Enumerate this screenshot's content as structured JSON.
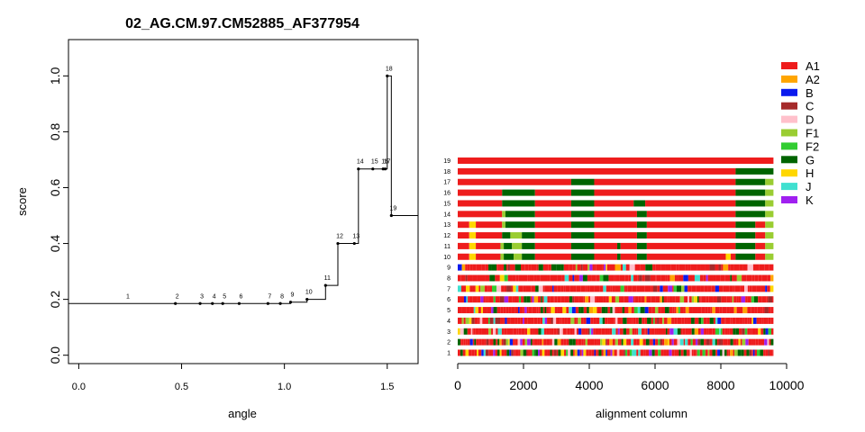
{
  "chart_data": [
    {
      "type": "line",
      "title": "02_AG.CM.97.CM52885_AF377954",
      "xlabel": "angle",
      "ylabel": "score",
      "xlim": [
        -0.05,
        1.65
      ],
      "ylim": [
        -0.03,
        1.13
      ],
      "xticks": [
        "0.0",
        "0.5",
        "1.0",
        "1.5"
      ],
      "xtick_values": [
        0,
        0.5,
        1.0,
        1.5
      ],
      "yticks": [
        "0.0",
        "0.2",
        "0.4",
        "0.6",
        "0.8",
        "1.0"
      ],
      "ytick_values": [
        0,
        0.2,
        0.4,
        0.6,
        0.8,
        1.0
      ],
      "step_points": [
        {
          "label": "1",
          "x": 0.23,
          "y": 0.185
        },
        {
          "label": "2",
          "x": 0.47,
          "y": 0.185
        },
        {
          "label": "3",
          "x": 0.59,
          "y": 0.185
        },
        {
          "label": "4",
          "x": 0.65,
          "y": 0.185
        },
        {
          "label": "5",
          "x": 0.7,
          "y": 0.185
        },
        {
          "label": "6",
          "x": 0.78,
          "y": 0.185
        },
        {
          "label": "7",
          "x": 0.92,
          "y": 0.185
        },
        {
          "label": "8",
          "x": 0.98,
          "y": 0.185
        },
        {
          "label": "9",
          "x": 1.03,
          "y": 0.19
        },
        {
          "label": "10",
          "x": 1.11,
          "y": 0.2
        },
        {
          "label": "11",
          "x": 1.2,
          "y": 0.25
        },
        {
          "label": "12",
          "x": 1.26,
          "y": 0.4
        },
        {
          "label": "13",
          "x": 1.34,
          "y": 0.4
        },
        {
          "label": "14",
          "x": 1.36,
          "y": 0.667
        },
        {
          "label": "15",
          "x": 1.43,
          "y": 0.667
        },
        {
          "label": "16",
          "x": 1.48,
          "y": 0.667
        },
        {
          "label": "17",
          "x": 1.49,
          "y": 0.667
        },
        {
          "label": "18",
          "x": 1.5,
          "y": 1.0
        },
        {
          "label": "19",
          "x": 1.52,
          "y": 0.5
        }
      ],
      "grid": false
    },
    {
      "type": "bar",
      "xlabel": "alignment column",
      "xlim": [
        0,
        10000
      ],
      "xticks": [
        "0",
        "2000",
        "4000",
        "6000",
        "8000",
        "10000"
      ],
      "xtick_values": [
        0,
        2000,
        4000,
        6000,
        8000,
        10000
      ],
      "rows": [
        "1",
        "2",
        "3",
        "4",
        "5",
        "6",
        "7",
        "8",
        "9",
        "10",
        "11",
        "12",
        "13",
        "14",
        "15",
        "16",
        "17",
        "18",
        "19"
      ],
      "row_segments": {
        "19": [
          {
            "start": 0,
            "end": 9600,
            "subtype": "A1"
          }
        ],
        "18": [
          {
            "start": 0,
            "end": 8450,
            "subtype": "A1"
          },
          {
            "start": 8450,
            "end": 9600,
            "subtype": "G"
          }
        ],
        "17": [
          {
            "start": 0,
            "end": 3450,
            "subtype": "A1"
          },
          {
            "start": 3450,
            "end": 4150,
            "subtype": "G"
          },
          {
            "start": 4150,
            "end": 8450,
            "subtype": "A1"
          },
          {
            "start": 8450,
            "end": 9350,
            "subtype": "G"
          },
          {
            "start": 9350,
            "end": 9600,
            "subtype": "F1"
          }
        ],
        "16": [
          {
            "start": 0,
            "end": 1350,
            "subtype": "A1"
          },
          {
            "start": 1350,
            "end": 2350,
            "subtype": "G"
          },
          {
            "start": 2350,
            "end": 3450,
            "subtype": "A1"
          },
          {
            "start": 3450,
            "end": 4150,
            "subtype": "G"
          },
          {
            "start": 4150,
            "end": 8450,
            "subtype": "A1"
          },
          {
            "start": 8450,
            "end": 9350,
            "subtype": "G"
          },
          {
            "start": 9350,
            "end": 9600,
            "subtype": "F1"
          }
        ],
        "15": [
          {
            "start": 0,
            "end": 1350,
            "subtype": "A1"
          },
          {
            "start": 1350,
            "end": 2350,
            "subtype": "G"
          },
          {
            "start": 2350,
            "end": 3450,
            "subtype": "A1"
          },
          {
            "start": 3450,
            "end": 4150,
            "subtype": "G"
          },
          {
            "start": 4150,
            "end": 5350,
            "subtype": "A1"
          },
          {
            "start": 5350,
            "end": 5700,
            "subtype": "G"
          },
          {
            "start": 5700,
            "end": 8450,
            "subtype": "A1"
          },
          {
            "start": 8450,
            "end": 9350,
            "subtype": "G"
          },
          {
            "start": 9350,
            "end": 9600,
            "subtype": "F1"
          }
        ],
        "14": [
          {
            "start": 0,
            "end": 1350,
            "subtype": "A1"
          },
          {
            "start": 1350,
            "end": 1450,
            "subtype": "F1"
          },
          {
            "start": 1450,
            "end": 2350,
            "subtype": "G"
          },
          {
            "start": 2350,
            "end": 3450,
            "subtype": "A1"
          },
          {
            "start": 3450,
            "end": 4150,
            "subtype": "G"
          },
          {
            "start": 4150,
            "end": 5450,
            "subtype": "A1"
          },
          {
            "start": 5450,
            "end": 5750,
            "subtype": "G"
          },
          {
            "start": 5750,
            "end": 8450,
            "subtype": "A1"
          },
          {
            "start": 8450,
            "end": 9350,
            "subtype": "G"
          },
          {
            "start": 9350,
            "end": 9600,
            "subtype": "F1"
          }
        ],
        "13": [
          {
            "start": 0,
            "end": 350,
            "subtype": "A1"
          },
          {
            "start": 350,
            "end": 550,
            "subtype": "H"
          },
          {
            "start": 550,
            "end": 1350,
            "subtype": "A1"
          },
          {
            "start": 1350,
            "end": 1450,
            "subtype": "F1"
          },
          {
            "start": 1450,
            "end": 2350,
            "subtype": "G"
          },
          {
            "start": 2350,
            "end": 3450,
            "subtype": "A1"
          },
          {
            "start": 3450,
            "end": 4150,
            "subtype": "G"
          },
          {
            "start": 4150,
            "end": 5450,
            "subtype": "A1"
          },
          {
            "start": 5450,
            "end": 5750,
            "subtype": "G"
          },
          {
            "start": 5750,
            "end": 8450,
            "subtype": "A1"
          },
          {
            "start": 8450,
            "end": 9050,
            "subtype": "G"
          },
          {
            "start": 9050,
            "end": 9350,
            "subtype": "A1"
          },
          {
            "start": 9350,
            "end": 9600,
            "subtype": "F1"
          }
        ],
        "12": [
          {
            "start": 0,
            "end": 350,
            "subtype": "A1"
          },
          {
            "start": 350,
            "end": 550,
            "subtype": "H"
          },
          {
            "start": 550,
            "end": 1350,
            "subtype": "A1"
          },
          {
            "start": 1350,
            "end": 1600,
            "subtype": "G"
          },
          {
            "start": 1600,
            "end": 1950,
            "subtype": "F1"
          },
          {
            "start": 1950,
            "end": 2350,
            "subtype": "G"
          },
          {
            "start": 2350,
            "end": 3450,
            "subtype": "A1"
          },
          {
            "start": 3450,
            "end": 4150,
            "subtype": "G"
          },
          {
            "start": 4150,
            "end": 5450,
            "subtype": "A1"
          },
          {
            "start": 5450,
            "end": 5750,
            "subtype": "G"
          },
          {
            "start": 5750,
            "end": 8450,
            "subtype": "A1"
          },
          {
            "start": 8450,
            "end": 9050,
            "subtype": "G"
          },
          {
            "start": 9050,
            "end": 9350,
            "subtype": "A1"
          },
          {
            "start": 9350,
            "end": 9600,
            "subtype": "F1"
          }
        ],
        "11": [
          {
            "start": 0,
            "end": 350,
            "subtype": "A1"
          },
          {
            "start": 350,
            "end": 550,
            "subtype": "H"
          },
          {
            "start": 550,
            "end": 1300,
            "subtype": "A1"
          },
          {
            "start": 1300,
            "end": 1400,
            "subtype": "F1"
          },
          {
            "start": 1400,
            "end": 1650,
            "subtype": "G"
          },
          {
            "start": 1650,
            "end": 1950,
            "subtype": "F1"
          },
          {
            "start": 1950,
            "end": 2350,
            "subtype": "G"
          },
          {
            "start": 2350,
            "end": 3450,
            "subtype": "A1"
          },
          {
            "start": 3450,
            "end": 4150,
            "subtype": "G"
          },
          {
            "start": 4150,
            "end": 4850,
            "subtype": "A1"
          },
          {
            "start": 4850,
            "end": 4950,
            "subtype": "G"
          },
          {
            "start": 4950,
            "end": 5450,
            "subtype": "A1"
          },
          {
            "start": 5450,
            "end": 5750,
            "subtype": "G"
          },
          {
            "start": 5750,
            "end": 8450,
            "subtype": "A1"
          },
          {
            "start": 8450,
            "end": 9050,
            "subtype": "G"
          },
          {
            "start": 9050,
            "end": 9350,
            "subtype": "A1"
          },
          {
            "start": 9350,
            "end": 9600,
            "subtype": "F1"
          }
        ],
        "10": [
          {
            "start": 0,
            "end": 350,
            "subtype": "A1"
          },
          {
            "start": 350,
            "end": 550,
            "subtype": "H"
          },
          {
            "start": 550,
            "end": 1300,
            "subtype": "A1"
          },
          {
            "start": 1300,
            "end": 1400,
            "subtype": "F1"
          },
          {
            "start": 1400,
            "end": 1700,
            "subtype": "G"
          },
          {
            "start": 1700,
            "end": 1950,
            "subtype": "F1"
          },
          {
            "start": 1950,
            "end": 2350,
            "subtype": "G"
          },
          {
            "start": 2350,
            "end": 3450,
            "subtype": "A1"
          },
          {
            "start": 3450,
            "end": 4150,
            "subtype": "G"
          },
          {
            "start": 4150,
            "end": 4850,
            "subtype": "A1"
          },
          {
            "start": 4850,
            "end": 4950,
            "subtype": "G"
          },
          {
            "start": 4950,
            "end": 5450,
            "subtype": "A1"
          },
          {
            "start": 5450,
            "end": 5750,
            "subtype": "G"
          },
          {
            "start": 5750,
            "end": 8150,
            "subtype": "A1"
          },
          {
            "start": 8150,
            "end": 8300,
            "subtype": "H"
          },
          {
            "start": 8300,
            "end": 8450,
            "subtype": "A1"
          },
          {
            "start": 8450,
            "end": 9050,
            "subtype": "G"
          },
          {
            "start": 9050,
            "end": 9350,
            "subtype": "A1"
          },
          {
            "start": 9350,
            "end": 9600,
            "subtype": "F1"
          }
        ]
      },
      "mosaic_rows": [
        "1",
        "2",
        "3",
        "4",
        "5",
        "6",
        "7",
        "8",
        "9"
      ],
      "legend": [
        {
          "name": "A1",
          "color": "#ee1c1c"
        },
        {
          "name": "A2",
          "color": "#ffa500"
        },
        {
          "name": "B",
          "color": "#0a1aee"
        },
        {
          "name": "C",
          "color": "#a52a2a"
        },
        {
          "name": "D",
          "color": "#ffc0cb"
        },
        {
          "name": "F1",
          "color": "#9acd32"
        },
        {
          "name": "F2",
          "color": "#32cd32"
        },
        {
          "name": "G",
          "color": "#006400"
        },
        {
          "name": "H",
          "color": "#ffd700"
        },
        {
          "name": "J",
          "color": "#40e0d0"
        },
        {
          "name": "K",
          "color": "#a020f0"
        }
      ],
      "legend_position": "right"
    }
  ]
}
